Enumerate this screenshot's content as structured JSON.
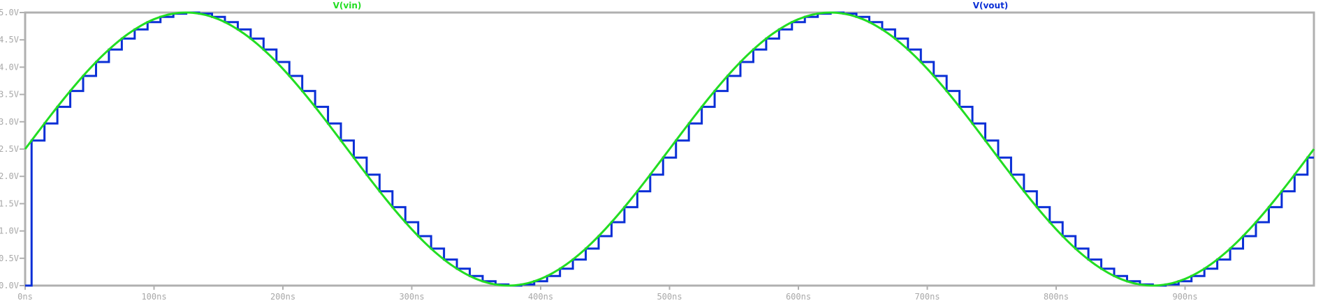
{
  "chart_data": {
    "type": "line",
    "title": "",
    "xlabel": "",
    "ylabel": "",
    "xlim": [
      0,
      1000
    ],
    "ylim": [
      0,
      5
    ],
    "x_unit": "ns",
    "grid": false,
    "legend_placement": "top",
    "x_ticks": [
      "0ns",
      "100ns",
      "200ns",
      "300ns",
      "400ns",
      "500ns",
      "600ns",
      "700ns",
      "800ns",
      "900ns"
    ],
    "x_tick_values": [
      0,
      100,
      200,
      300,
      400,
      500,
      600,
      700,
      800,
      900
    ],
    "y_ticks": [
      "0.0V",
      "0.5V",
      "1.0V",
      "1.5V",
      "2.0V",
      "2.5V",
      "3.0V",
      "3.5V",
      "4.0V",
      "4.5V",
      "5.0V"
    ],
    "y_tick_values": [
      0,
      0.5,
      1,
      1.5,
      2,
      2.5,
      3,
      3.5,
      4,
      4.5,
      5
    ],
    "series": [
      {
        "name": "V(vin)",
        "color": "#22dd22",
        "style": "smooth",
        "x_step": 10,
        "x_start": 0,
        "values": [
          2.5,
          2.813,
          3.122,
          3.42,
          3.704,
          3.969,
          4.211,
          4.426,
          4.611,
          4.762,
          4.878,
          4.956,
          4.995,
          4.995,
          4.956,
          4.878,
          4.762,
          4.611,
          4.426,
          4.211,
          3.969,
          3.704,
          3.42,
          3.122,
          2.813,
          2.5,
          2.187,
          1.878,
          1.58,
          1.296,
          1.031,
          0.789,
          0.574,
          0.389,
          0.238,
          0.122,
          0.044,
          0.005,
          0.005,
          0.044,
          0.122,
          0.238,
          0.389,
          0.574,
          0.789,
          1.031,
          1.296,
          1.58,
          1.878,
          2.187,
          2.5,
          2.813,
          3.122,
          3.42,
          3.704,
          3.969,
          4.211,
          4.426,
          4.611,
          4.762,
          4.878,
          4.956,
          4.995,
          4.995,
          4.956,
          4.878,
          4.762,
          4.611,
          4.426,
          4.211,
          3.969,
          3.704,
          3.42,
          3.122,
          2.813,
          2.5,
          2.187,
          1.878,
          1.58,
          1.296,
          1.031,
          0.789,
          0.574,
          0.389,
          0.238,
          0.122,
          0.044,
          0.005,
          0.005,
          0.044,
          0.122,
          0.238,
          0.389,
          0.574,
          0.789,
          1.031,
          1.296,
          1.58,
          1.878,
          2.187,
          2.5
        ]
      },
      {
        "name": "V(vout)",
        "color": "#0a2fd6",
        "style": "step",
        "initial_value": 0,
        "x_step": 10,
        "x_start": 5,
        "values": [
          2.657,
          2.968,
          3.273,
          3.564,
          3.84,
          4.094,
          4.322,
          4.523,
          4.691,
          4.824,
          4.921,
          4.98,
          5.0,
          4.98,
          4.921,
          4.824,
          4.691,
          4.523,
          4.322,
          4.094,
          3.84,
          3.564,
          3.273,
          2.968,
          2.657,
          2.343,
          2.032,
          1.727,
          1.436,
          1.16,
          0.906,
          0.678,
          0.477,
          0.309,
          0.176,
          0.079,
          0.02,
          0.0,
          0.02,
          0.079,
          0.176,
          0.309,
          0.477,
          0.678,
          0.906,
          1.16,
          1.436,
          1.727,
          2.032,
          2.343,
          2.657,
          2.968,
          3.273,
          3.564,
          3.84,
          4.094,
          4.322,
          4.523,
          4.691,
          4.824,
          4.921,
          4.98,
          5.0,
          4.98,
          4.921,
          4.824,
          4.691,
          4.523,
          4.322,
          4.094,
          3.84,
          3.564,
          3.273,
          2.968,
          2.657,
          2.343,
          2.032,
          1.727,
          1.436,
          1.16,
          0.906,
          0.678,
          0.477,
          0.309,
          0.176,
          0.079,
          0.02,
          0.0,
          0.02,
          0.079,
          0.176,
          0.309,
          0.477,
          0.678,
          0.906,
          1.16,
          1.436,
          1.727,
          2.032,
          2.343
        ]
      }
    ]
  }
}
